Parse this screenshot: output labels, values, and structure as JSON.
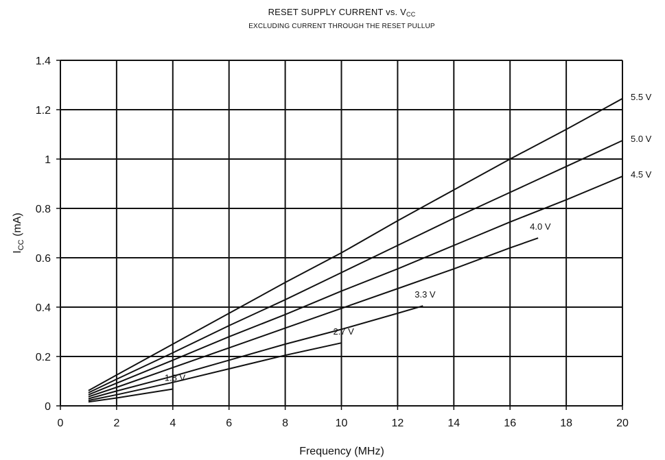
{
  "chart_data": {
    "type": "line",
    "title": "RESET SUPPLY CURRENT vs. V",
    "title_sub": "CC",
    "subtitle": "EXCLUDING CURRENT THROUGH THE RESET PULLUP",
    "xlabel": "Frequency (MHz)",
    "ylabel": "I",
    "ylabel_sub": "CC",
    "ylabel_unit": " (mA)",
    "xlim": [
      0,
      20
    ],
    "ylim": [
      0,
      1.4
    ],
    "x_ticks": [
      "0",
      "2",
      "4",
      "6",
      "8",
      "10",
      "12",
      "14",
      "16",
      "18",
      "20"
    ],
    "y_ticks": [
      "0",
      "0.2",
      "0.4",
      "0.6",
      "0.8",
      "1",
      "1.2",
      "1.4"
    ],
    "grid": true,
    "series": [
      {
        "name": "5.5 V",
        "x": [
          1,
          2,
          4,
          6,
          8,
          10,
          12,
          14,
          16,
          18,
          20
        ],
        "y": [
          0.062,
          0.125,
          0.25,
          0.375,
          0.5,
          0.62,
          0.75,
          0.875,
          1.0,
          1.12,
          1.245
        ]
      },
      {
        "name": "5.0 V",
        "x": [
          1,
          2,
          4,
          6,
          8,
          10,
          12,
          14,
          16,
          18,
          20
        ],
        "y": [
          0.053,
          0.108,
          0.215,
          0.325,
          0.43,
          0.54,
          0.65,
          0.76,
          0.865,
          0.97,
          1.075
        ]
      },
      {
        "name": "4.5 V",
        "x": [
          1,
          2,
          4,
          6,
          8,
          10,
          12,
          14,
          16,
          18,
          20
        ],
        "y": [
          0.045,
          0.092,
          0.185,
          0.28,
          0.37,
          0.465,
          0.555,
          0.65,
          0.745,
          0.835,
          0.93
        ]
      },
      {
        "name": "4.0 V",
        "x": [
          1,
          2,
          4,
          6,
          8,
          10,
          12,
          14,
          16,
          17
        ],
        "y": [
          0.037,
          0.075,
          0.155,
          0.235,
          0.315,
          0.395,
          0.475,
          0.555,
          0.64,
          0.68
        ]
      },
      {
        "name": "3.3 V",
        "x": [
          1,
          2,
          4,
          6,
          8,
          10,
          12,
          12.9
        ],
        "y": [
          0.029,
          0.06,
          0.12,
          0.185,
          0.25,
          0.31,
          0.375,
          0.405
        ]
      },
      {
        "name": "2.7 V",
        "x": [
          1,
          2,
          4,
          6,
          8,
          10
        ],
        "y": [
          0.022,
          0.045,
          0.095,
          0.15,
          0.205,
          0.255
        ]
      },
      {
        "name": "1.8 V",
        "x": [
          1,
          2,
          3,
          4
        ],
        "y": [
          0.016,
          0.032,
          0.05,
          0.068
        ]
      }
    ]
  }
}
